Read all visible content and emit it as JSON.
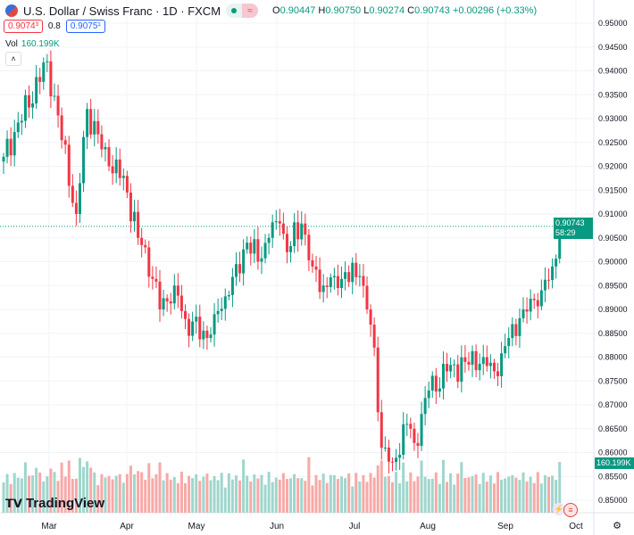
{
  "header": {
    "title": "U.S. Dollar / Swiss Franc · 1D · FXCM",
    "open_label": "O",
    "open": "0.90447",
    "high_label": "H",
    "high": "0.90750",
    "low_label": "L",
    "low": "0.90274",
    "close_label": "C",
    "close": "0.90743",
    "change": "+0.00296 (+0.33%)",
    "sell": "0.9074³",
    "spread": "0.8",
    "buy": "0.9075¹"
  },
  "volume": {
    "label": "Vol",
    "value": "160.199K"
  },
  "collapse_label": "˄",
  "price_label": {
    "price": "0.90743",
    "countdown": "58:29"
  },
  "volume_label": "160.199K",
  "logo": "TradingView",
  "colors": {
    "up": "#089981",
    "down": "#f23645",
    "up_vol": "#9fd6cc",
    "down_vol": "#f7a9a7"
  },
  "chart_data": {
    "type": "candlestick",
    "y_ticks": [
      "0.95000",
      "0.94500",
      "0.94000",
      "0.93500",
      "0.93000",
      "0.92500",
      "0.92000",
      "0.91500",
      "0.91000",
      "0.90500",
      "0.90000",
      "0.89500",
      "0.89000",
      "0.88500",
      "0.88000",
      "0.87500",
      "0.87000",
      "0.86500",
      "0.86000",
      "0.85500",
      "0.85000"
    ],
    "ylim": [
      0.85,
      0.95
    ],
    "x_ticks": [
      "Mar",
      "Apr",
      "May",
      "Jun",
      "Jul",
      "Aug",
      "Sep",
      "Oct"
    ],
    "close_keypoints": [
      [
        0,
        0.922
      ],
      [
        12,
        0.942
      ],
      [
        20,
        0.91
      ],
      [
        23,
        0.932
      ],
      [
        29,
        0.92
      ],
      [
        33,
        0.918
      ],
      [
        37,
        0.905
      ],
      [
        39,
        0.903
      ],
      [
        43,
        0.89
      ],
      [
        47,
        0.895
      ],
      [
        50,
        0.888
      ],
      [
        56,
        0.884
      ],
      [
        58,
        0.889
      ],
      [
        62,
        0.893
      ],
      [
        67,
        0.904
      ],
      [
        70,
        0.9
      ],
      [
        73,
        0.905
      ],
      [
        76,
        0.908
      ],
      [
        78,
        0.902
      ],
      [
        82,
        0.908
      ],
      [
        85,
        0.899
      ],
      [
        88,
        0.895
      ],
      [
        91,
        0.897
      ],
      [
        98,
        0.897
      ],
      [
        100,
        0.89
      ],
      [
        102,
        0.882
      ],
      [
        104,
        0.861
      ],
      [
        107,
        0.858
      ],
      [
        111,
        0.866
      ],
      [
        113,
        0.862
      ],
      [
        117,
        0.873
      ],
      [
        122,
        0.877
      ],
      [
        127,
        0.879
      ],
      [
        132,
        0.88
      ],
      [
        136,
        0.876
      ],
      [
        139,
        0.884
      ],
      [
        143,
        0.89
      ],
      [
        148,
        0.894
      ],
      [
        151,
        0.899
      ],
      [
        153,
        0.9074
      ]
    ]
  }
}
